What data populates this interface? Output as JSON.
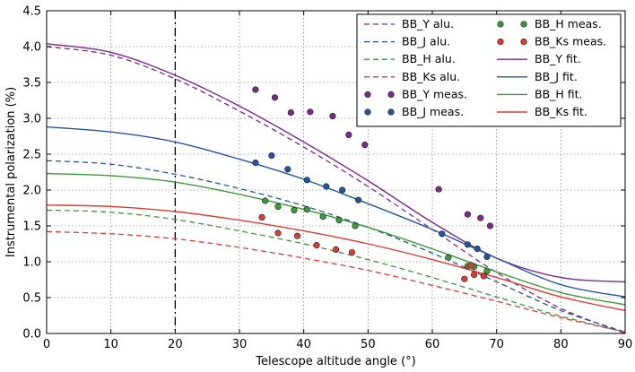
{
  "chart_data": {
    "type": "line",
    "title": "",
    "xlabel": "Telescope altitude angle (°)",
    "ylabel": "Instrumental polarization (%)",
    "xlim": [
      0,
      90
    ],
    "ylim": [
      0.0,
      4.5
    ],
    "xticks": [
      0,
      10,
      20,
      30,
      40,
      50,
      60,
      70,
      80,
      90
    ],
    "yticks": [
      0.0,
      0.5,
      1.0,
      1.5,
      2.0,
      2.5,
      3.0,
      3.5,
      4.0,
      4.5
    ],
    "xtick_labels": [
      "0",
      "10",
      "20",
      "30",
      "40",
      "50",
      "60",
      "70",
      "80",
      "90"
    ],
    "ytick_labels": [
      "0.0",
      "0.5",
      "1.0",
      "1.5",
      "2.0",
      "2.5",
      "3.0",
      "3.5",
      "4.0",
      "4.5"
    ],
    "grid": true,
    "vline": {
      "x": 20,
      "style": "dash-dot",
      "color": "#000000"
    },
    "legend": {
      "position": "top-right",
      "columns": 2
    },
    "alu_series": [
      {
        "name": "BB_Y alu.",
        "color": "#7b2a8c",
        "x": [
          0,
          10,
          20,
          30,
          40,
          50,
          60,
          70,
          80,
          90
        ],
        "values": [
          4.0,
          3.88,
          3.55,
          3.1,
          2.6,
          2.05,
          1.45,
          0.85,
          0.35,
          0.0
        ]
      },
      {
        "name": "BB_J alu.",
        "color": "#2255a4",
        "x": [
          0,
          10,
          20,
          30,
          40,
          50,
          60,
          70,
          80,
          90
        ],
        "values": [
          2.41,
          2.36,
          2.22,
          2.02,
          1.78,
          1.48,
          1.12,
          0.72,
          0.32,
          0.02
        ]
      },
      {
        "name": "BB_H alu.",
        "color": "#3a9a3a",
        "x": [
          0,
          10,
          20,
          30,
          40,
          50,
          60,
          70,
          80,
          90
        ],
        "values": [
          1.72,
          1.69,
          1.59,
          1.43,
          1.25,
          1.03,
          0.78,
          0.51,
          0.24,
          0.02
        ]
      },
      {
        "name": "BB_Ks alu.",
        "color": "#e23a33",
        "x": [
          0,
          10,
          20,
          30,
          40,
          50,
          60,
          70,
          80,
          90
        ],
        "values": [
          1.42,
          1.39,
          1.32,
          1.2,
          1.05,
          0.88,
          0.67,
          0.45,
          0.22,
          0.02
        ]
      }
    ],
    "meas_series": [
      {
        "name": "BB_Y meas.",
        "color": "#7b2a8c",
        "x": [
          32.5,
          35.5,
          38.0,
          41.0,
          44.5,
          47.0,
          49.5,
          61.0,
          65.5,
          67.5,
          69.0
        ],
        "values": [
          3.4,
          3.29,
          3.08,
          3.09,
          3.03,
          2.77,
          2.63,
          2.01,
          1.66,
          1.61,
          1.5
        ]
      },
      {
        "name": "BB_J meas.",
        "color": "#2255a4",
        "x": [
          32.5,
          35.0,
          37.5,
          40.5,
          43.5,
          46.0,
          48.5,
          61.5,
          65.5,
          67.0,
          68.5
        ],
        "values": [
          2.38,
          2.48,
          2.29,
          2.14,
          2.05,
          2.0,
          1.86,
          1.39,
          1.24,
          1.18,
          1.07
        ]
      },
      {
        "name": "BB_H meas.",
        "color": "#3a9a3a",
        "x": [
          34.0,
          36.0,
          38.5,
          40.5,
          43.0,
          45.5,
          48.0,
          62.5,
          65.5,
          66.5,
          68.5
        ],
        "values": [
          1.85,
          1.77,
          1.72,
          1.73,
          1.63,
          1.58,
          1.5,
          1.06,
          0.94,
          0.93,
          0.87
        ]
      },
      {
        "name": "BB_Ks meas.",
        "color": "#e23a33",
        "x": [
          33.5,
          36.0,
          39.0,
          42.0,
          45.0,
          47.5,
          65.0,
          66.0,
          66.5,
          68.0
        ],
        "values": [
          1.62,
          1.4,
          1.36,
          1.23,
          1.17,
          1.13,
          0.76,
          0.95,
          0.82,
          0.8
        ]
      }
    ],
    "fit_series": [
      {
        "name": "BB_Y fit.",
        "color": "#7b2a8c",
        "x": [
          0,
          10,
          20,
          30,
          40,
          50,
          60,
          70,
          80,
          90
        ],
        "values": [
          4.04,
          3.92,
          3.6,
          3.17,
          2.67,
          2.13,
          1.55,
          1.05,
          0.78,
          0.72
        ]
      },
      {
        "name": "BB_J fit.",
        "color": "#2255a4",
        "x": [
          0,
          10,
          20,
          30,
          40,
          50,
          60,
          70,
          80,
          90
        ],
        "values": [
          2.88,
          2.81,
          2.67,
          2.43,
          2.15,
          1.81,
          1.45,
          1.05,
          0.68,
          0.51
        ]
      },
      {
        "name": "BB_H fit.",
        "color": "#3a9a3a",
        "x": [
          0,
          10,
          20,
          30,
          40,
          50,
          60,
          70,
          80,
          90
        ],
        "values": [
          2.23,
          2.2,
          2.11,
          1.94,
          1.73,
          1.48,
          1.18,
          0.86,
          0.57,
          0.4
        ]
      },
      {
        "name": "BB_Ks fit.",
        "color": "#e23a33",
        "x": [
          0,
          10,
          20,
          30,
          40,
          50,
          60,
          70,
          80,
          90
        ],
        "values": [
          1.79,
          1.77,
          1.7,
          1.58,
          1.43,
          1.25,
          1.03,
          0.78,
          0.51,
          0.32
        ]
      }
    ]
  }
}
